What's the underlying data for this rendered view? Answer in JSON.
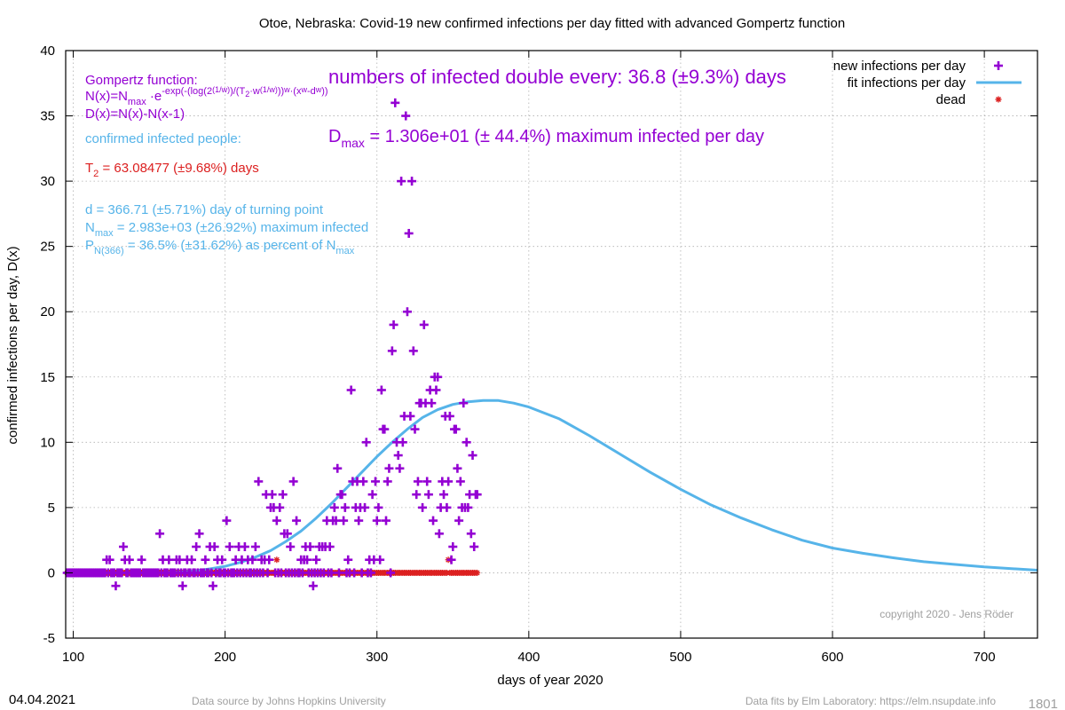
{
  "chart_data": {
    "type": "scatter",
    "title": "Otoe,  Nebraska: Covid-19 new confirmed infections per day fitted with advanced Gompertz function",
    "xlabel": "days of year 2020",
    "ylabel": "confirmed infections per day, D(x)",
    "xlim": [
      95,
      735
    ],
    "ylim": [
      -5,
      40
    ],
    "x_ticks": [
      100,
      200,
      300,
      400,
      500,
      600,
      700
    ],
    "y_ticks": [
      -5,
      0,
      5,
      10,
      15,
      20,
      25,
      30,
      35,
      40
    ],
    "grid": true,
    "legend_position": "top-right",
    "legend": [
      {
        "label": "new infections per day",
        "symbol": "plus",
        "color": "#9400d3"
      },
      {
        "label": "fit infections per day",
        "symbol": "line",
        "color": "#56b4e9"
      },
      {
        "label": "dead",
        "symbol": "star",
        "color": "#dc2020"
      }
    ],
    "series": [
      {
        "name": "new infections per day",
        "color": "#9400d3",
        "points": [
          [
            122,
            1
          ],
          [
            124,
            1
          ],
          [
            128,
            -1
          ],
          [
            133,
            2
          ],
          [
            134,
            1
          ],
          [
            137,
            1
          ],
          [
            145,
            1
          ],
          [
            157,
            3
          ],
          [
            159,
            1
          ],
          [
            163,
            1
          ],
          [
            168,
            1
          ],
          [
            170,
            1
          ],
          [
            172,
            -1
          ],
          [
            175,
            1
          ],
          [
            178,
            1
          ],
          [
            181,
            2
          ],
          [
            183,
            3
          ],
          [
            187,
            1
          ],
          [
            190,
            2
          ],
          [
            192,
            -1
          ],
          [
            193,
            2
          ],
          [
            195,
            1
          ],
          [
            198,
            1
          ],
          [
            201,
            4
          ],
          [
            203,
            2
          ],
          [
            207,
            1
          ],
          [
            209,
            2
          ],
          [
            211,
            1
          ],
          [
            213,
            2
          ],
          [
            215,
            1
          ],
          [
            218,
            1
          ],
          [
            220,
            2
          ],
          [
            222,
            7
          ],
          [
            224,
            1
          ],
          [
            226,
            1
          ],
          [
            227,
            6
          ],
          [
            229,
            1
          ],
          [
            230,
            5
          ],
          [
            231,
            6
          ],
          [
            232,
            5
          ],
          [
            234,
            4
          ],
          [
            236,
            5
          ],
          [
            238,
            6
          ],
          [
            239,
            3
          ],
          [
            241,
            3
          ],
          [
            243,
            2
          ],
          [
            245,
            7
          ],
          [
            247,
            4
          ],
          [
            250,
            1
          ],
          [
            252,
            1
          ],
          [
            253,
            2
          ],
          [
            254,
            1
          ],
          [
            256,
            2
          ],
          [
            258,
            -1
          ],
          [
            260,
            1
          ],
          [
            262,
            2
          ],
          [
            264,
            2
          ],
          [
            266,
            2
          ],
          [
            267,
            4
          ],
          [
            269,
            2
          ],
          [
            271,
            4
          ],
          [
            272,
            5
          ],
          [
            273,
            4
          ],
          [
            274,
            8
          ],
          [
            276,
            6
          ],
          [
            277,
            6
          ],
          [
            278,
            4
          ],
          [
            279,
            5
          ],
          [
            281,
            1
          ],
          [
            283,
            14
          ],
          [
            284,
            7
          ],
          [
            286,
            5
          ],
          [
            287,
            7
          ],
          [
            288,
            4
          ],
          [
            289,
            5
          ],
          [
            291,
            7
          ],
          [
            292,
            5
          ],
          [
            293,
            10
          ],
          [
            295,
            1
          ],
          [
            297,
            6
          ],
          [
            298,
            1
          ],
          [
            299,
            7
          ],
          [
            300,
            4
          ],
          [
            301,
            5
          ],
          [
            302,
            1
          ],
          [
            303,
            14
          ],
          [
            304,
            11
          ],
          [
            305,
            11
          ],
          [
            306,
            4
          ],
          [
            307,
            7
          ],
          [
            308,
            8
          ],
          [
            310,
            17
          ],
          [
            311,
            19
          ],
          [
            312,
            36
          ],
          [
            313,
            10
          ],
          [
            314,
            9
          ],
          [
            315,
            8
          ],
          [
            316,
            30
          ],
          [
            317,
            10
          ],
          [
            318,
            12
          ],
          [
            319,
            35
          ],
          [
            320,
            20
          ],
          [
            321,
            26
          ],
          [
            322,
            12
          ],
          [
            323,
            30
          ],
          [
            324,
            17
          ],
          [
            325,
            11
          ],
          [
            326,
            6
          ],
          [
            327,
            7
          ],
          [
            328,
            13
          ],
          [
            329,
            13
          ],
          [
            330,
            5
          ],
          [
            331,
            19
          ],
          [
            332,
            13
          ],
          [
            333,
            7
          ],
          [
            334,
            6
          ],
          [
            335,
            14
          ],
          [
            336,
            13
          ],
          [
            337,
            4
          ],
          [
            338,
            15
          ],
          [
            339,
            14
          ],
          [
            340,
            15
          ],
          [
            341,
            3
          ],
          [
            342,
            5
          ],
          [
            343,
            7
          ],
          [
            344,
            6
          ],
          [
            345,
            12
          ],
          [
            346,
            5
          ],
          [
            347,
            7
          ],
          [
            348,
            12
          ],
          [
            349,
            1
          ],
          [
            350,
            2
          ],
          [
            351,
            11
          ],
          [
            352,
            11
          ],
          [
            353,
            8
          ],
          [
            354,
            4
          ],
          [
            355,
            7
          ],
          [
            356,
            5
          ],
          [
            357,
            13
          ],
          [
            358,
            5
          ],
          [
            359,
            10
          ],
          [
            360,
            5
          ],
          [
            361,
            6
          ],
          [
            362,
            3
          ],
          [
            363,
            9
          ],
          [
            364,
            2
          ],
          [
            365,
            6
          ],
          [
            366,
            6
          ]
        ]
      },
      {
        "name": "fit infections per day",
        "color": "#56b4e9",
        "curve_points": [
          [
            160,
            0
          ],
          [
            170,
            0.05
          ],
          [
            180,
            0.15
          ],
          [
            190,
            0.3
          ],
          [
            200,
            0.5
          ],
          [
            210,
            0.8
          ],
          [
            220,
            1.2
          ],
          [
            230,
            1.7
          ],
          [
            240,
            2.4
          ],
          [
            250,
            3.2
          ],
          [
            260,
            4.2
          ],
          [
            270,
            5.3
          ],
          [
            280,
            6.5
          ],
          [
            290,
            7.7
          ],
          [
            300,
            8.9
          ],
          [
            310,
            10
          ],
          [
            320,
            11
          ],
          [
            330,
            11.9
          ],
          [
            340,
            12.5
          ],
          [
            350,
            12.9
          ],
          [
            360,
            13.1
          ],
          [
            370,
            13.2
          ],
          [
            380,
            13.2
          ],
          [
            390,
            13
          ],
          [
            400,
            12.7
          ],
          [
            420,
            11.8
          ],
          [
            440,
            10.5
          ],
          [
            460,
            9.1
          ],
          [
            480,
            7.7
          ],
          [
            500,
            6.4
          ],
          [
            520,
            5.2
          ],
          [
            540,
            4.2
          ],
          [
            560,
            3.3
          ],
          [
            580,
            2.5
          ],
          [
            600,
            1.9
          ],
          [
            620,
            1.5
          ],
          [
            640,
            1.15
          ],
          [
            660,
            0.85
          ],
          [
            680,
            0.65
          ],
          [
            700,
            0.45
          ],
          [
            735,
            0.2
          ]
        ]
      },
      {
        "name": "dead",
        "color": "#dc2020",
        "x_range": [
          96,
          366
        ],
        "default_value": 0,
        "nonzero_points": [
          [
            234,
            1
          ],
          [
            347,
            1
          ]
        ]
      }
    ]
  },
  "annotations": {
    "formula_title": "Gompertz function:",
    "formula_line1": {
      "a": "N(x)=N",
      "b": "max",
      "c": " ·e",
      "d": "-exp(-(log(2",
      "e": "(1/w)",
      "f": ")/(T",
      "g": "2",
      "h": "·w",
      "i": "(1/w)",
      "j": "))",
      "k": "w",
      "l": "·(x",
      "m": "w",
      "n": "-d",
      "o": "w",
      "p": "))"
    },
    "formula_line2": "D(x)=N(x)-N(x-1)",
    "confirmed_label": "confirmed infected people:",
    "t2": {
      "a": "T",
      "b": "2",
      "c": " = 63.08477 (±9.68%) days"
    },
    "turning_point": "d = 366.71 (±5.71%) day of turning point",
    "nmax": {
      "a": "N",
      "b": "max",
      "c": " = 2.983e+03 (±26.92%) maximum infected"
    },
    "pn": {
      "a": "P",
      "b": "N(366)",
      "c": " = 36.5% (±31.62%) as percent of N",
      "d": "max"
    },
    "doubling": "numbers of infected double every: 36.8 (±9.3%) days",
    "dmax": {
      "a": "D",
      "b": "max",
      "c": " = 1.306e+01 (± 44.4%) maximum infected per day"
    },
    "copyright": "copyright 2020 - Jens Röder"
  },
  "footer": {
    "date": "04.04.2021",
    "source": "Data source by Johns Hopkins University",
    "fits": "Data fits by Elm Laboratory: https://elm.nsupdate.info",
    "number": "1801"
  },
  "colors": {
    "purple": "#9400d3",
    "blue": "#56b4e9",
    "red": "#dc2020",
    "gray": "#a0a0a0"
  }
}
